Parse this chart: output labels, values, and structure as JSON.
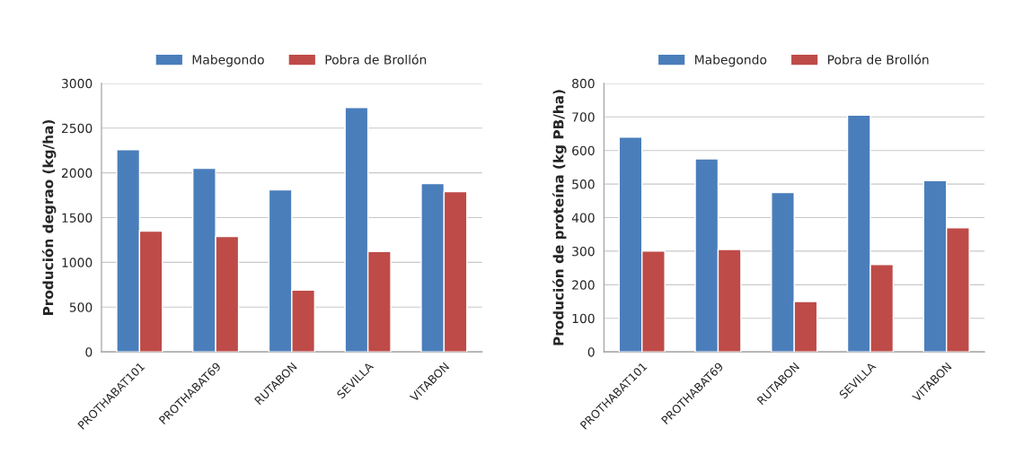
{
  "chart_data": [
    {
      "type": "bar",
      "categories": [
        "PROTHABAT101",
        "PROTHABAT69",
        "RUTABON",
        "SEVILLA",
        "VITABON"
      ],
      "ylabel": "Produción degrao (kg/ha)",
      "ylim": [
        0,
        3000
      ],
      "yticks": [
        0,
        500,
        1000,
        1500,
        2000,
        2500,
        3000
      ],
      "grid": "y",
      "legend": "top",
      "series": [
        {
          "name": "Mabegondo",
          "color": "#4a7ebb",
          "values": [
            2260,
            2050,
            1810,
            2730,
            1880
          ]
        },
        {
          "name": "Pobra de Brollón",
          "color": "#be4b48",
          "values": [
            1350,
            1290,
            690,
            1120,
            1790
          ]
        }
      ]
    },
    {
      "type": "bar",
      "categories": [
        "PROTHABAT101",
        "PROTHABAT69",
        "RUTABON",
        "SEVILLA",
        "VITABON"
      ],
      "ylabel": "Produción de proteína (kg PB/ha)",
      "ylim": [
        0,
        800
      ],
      "yticks": [
        0,
        100,
        200,
        300,
        400,
        500,
        600,
        700,
        800
      ],
      "grid": "y",
      "legend": "top",
      "series": [
        {
          "name": "Mabegondo",
          "color": "#4a7ebb",
          "values": [
            640,
            575,
            475,
            705,
            510
          ]
        },
        {
          "name": "Pobra de Brollón",
          "color": "#be4b48",
          "values": [
            300,
            305,
            150,
            260,
            370
          ]
        }
      ]
    }
  ]
}
